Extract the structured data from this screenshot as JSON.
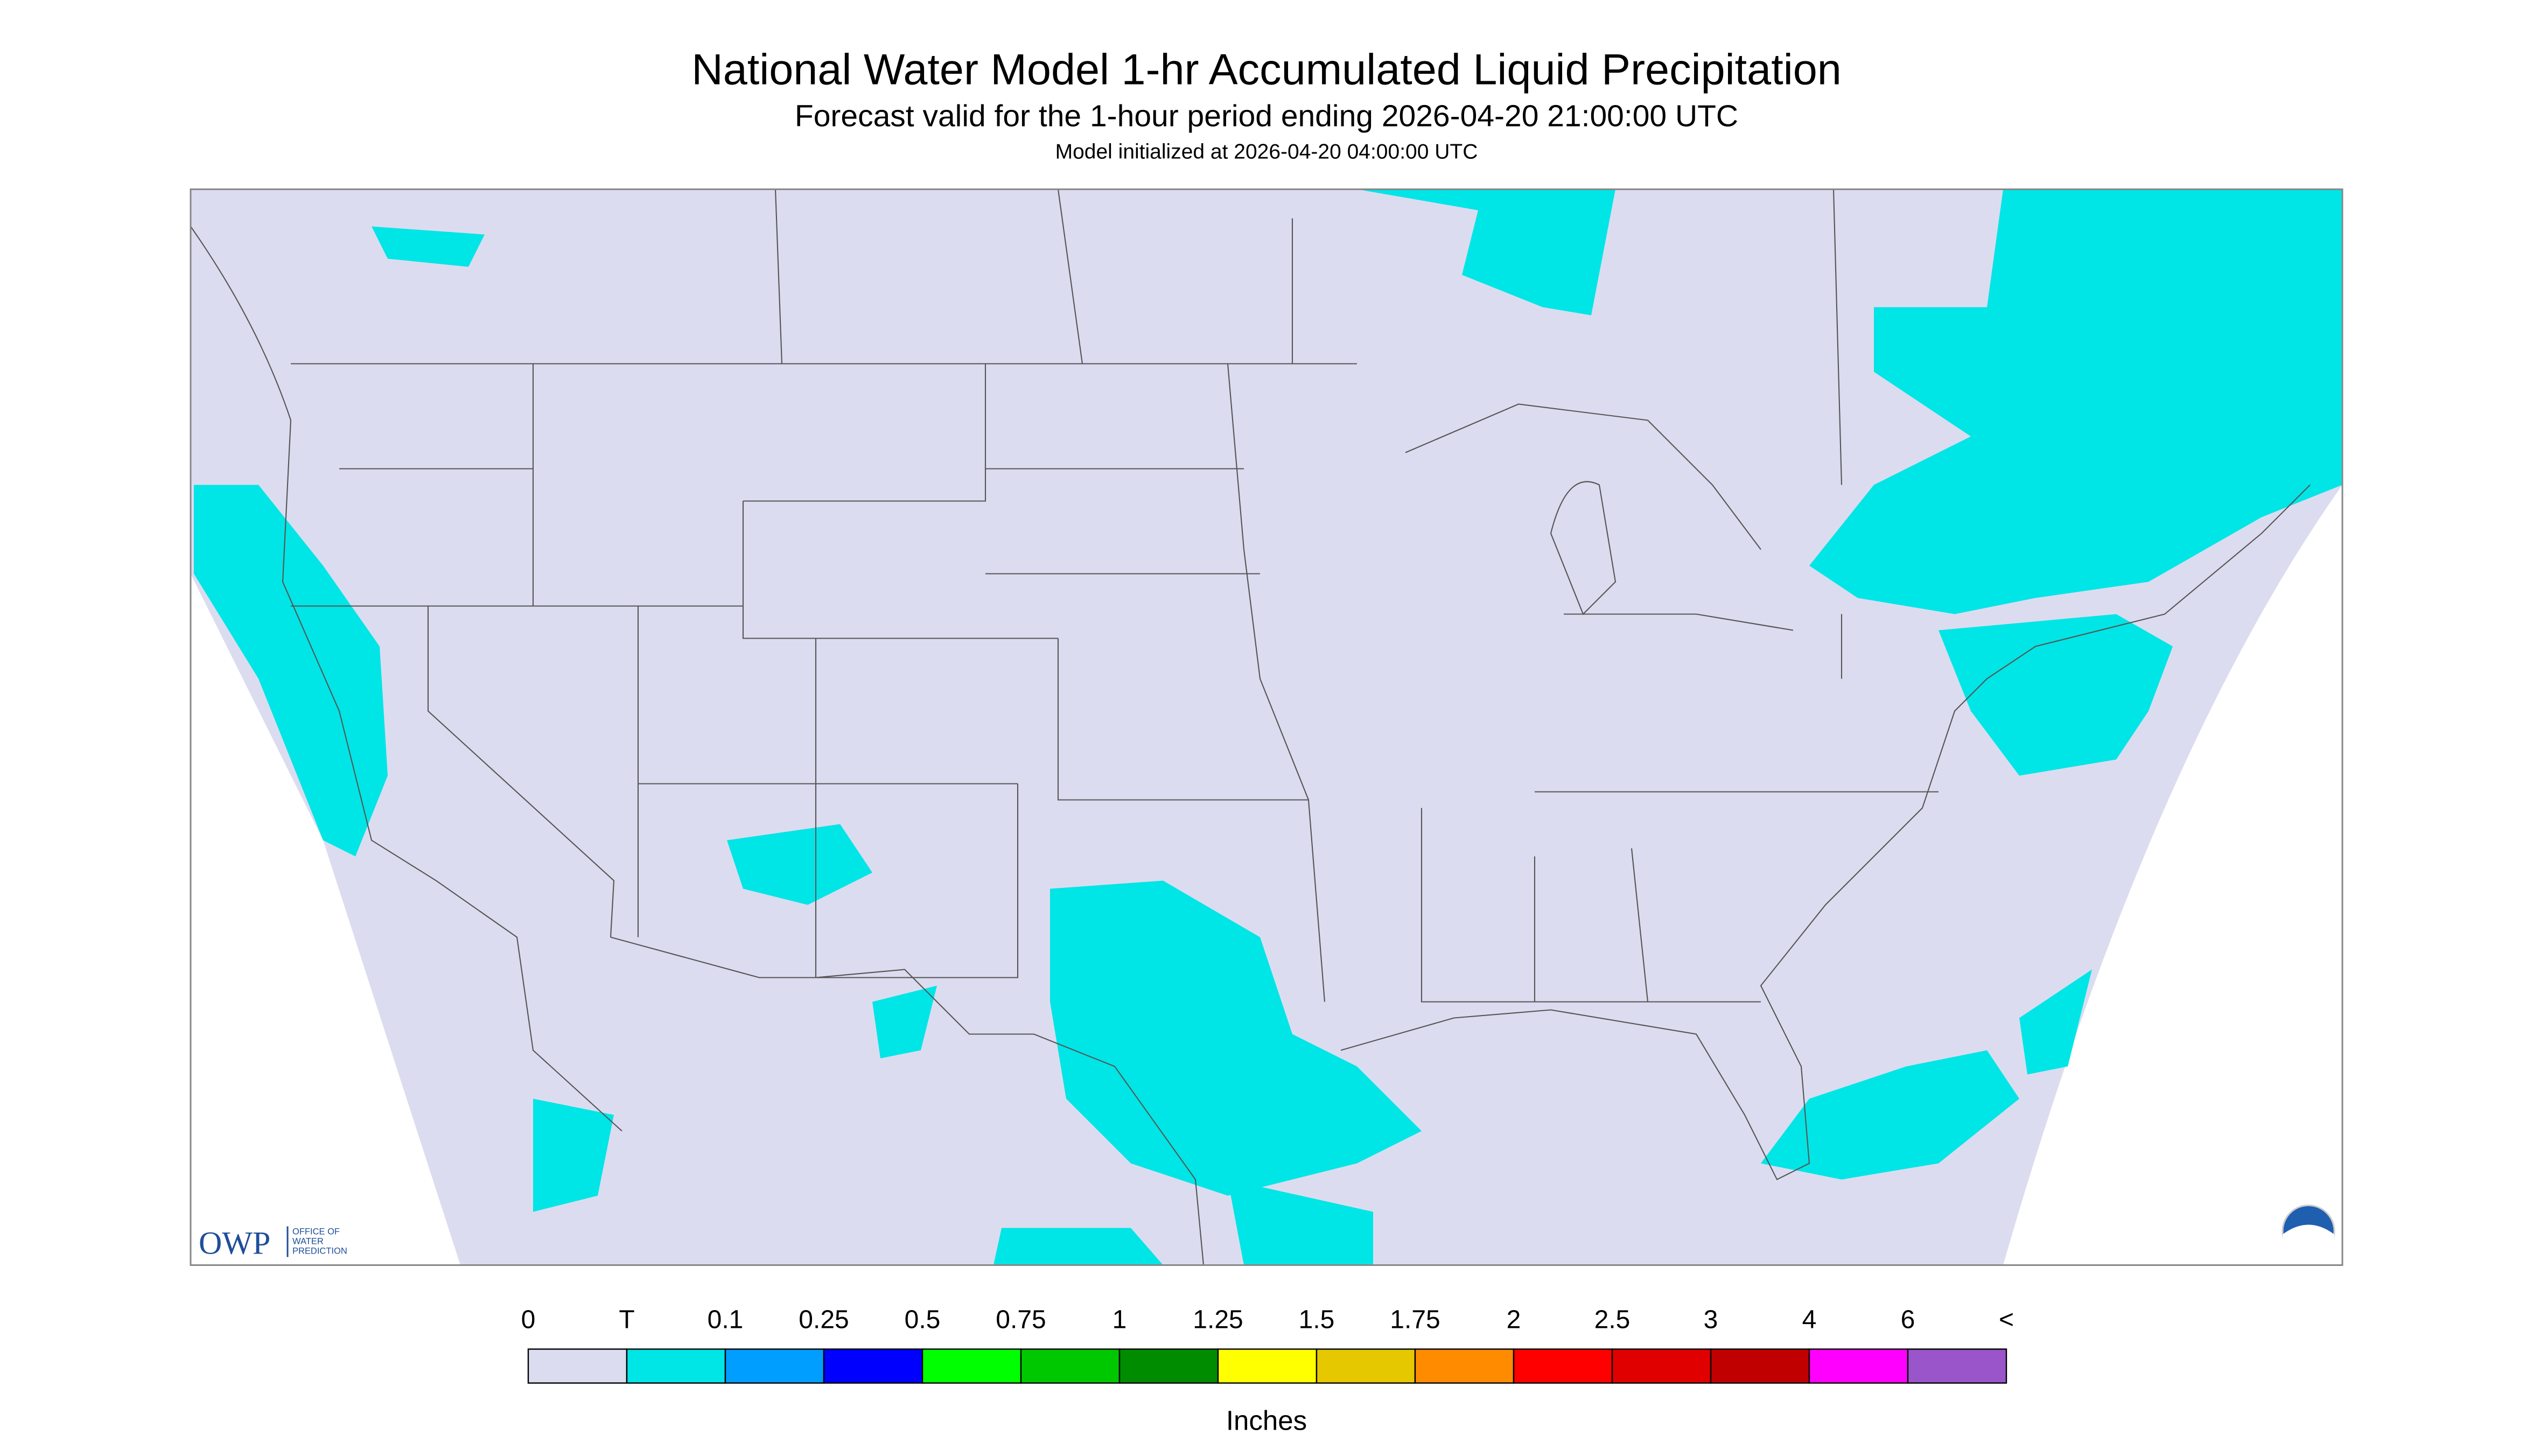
{
  "title": "National Water Model 1-hr Accumulated Liquid Precipitation",
  "subtitle": "Forecast valid for the 1-hour period ending 2026-04-20 21:00:00 UTC",
  "note": "Model initialized at 2026-04-20 04:00:00 UTC",
  "legend": {
    "labels": [
      "0",
      "T",
      "0.1",
      "0.25",
      "0.5",
      "0.75",
      "1",
      "1.25",
      "1.5",
      "1.75",
      "2",
      "2.5",
      "3",
      "4",
      "6",
      "<"
    ],
    "colors": [
      "#dcdcf0",
      "#00e5e5",
      "#009eff",
      "#0000ff",
      "#00ff00",
      "#00c800",
      "#008c00",
      "#ffff00",
      "#e6c800",
      "#ff8c00",
      "#ff0000",
      "#e10000",
      "#c00000",
      "#ff00ff",
      "#9955c9"
    ],
    "unit": "Inches"
  },
  "logo": {
    "short": "OWP",
    "line1": "OFFICE OF",
    "line2": "WATER",
    "line3": "PREDICTION"
  }
}
